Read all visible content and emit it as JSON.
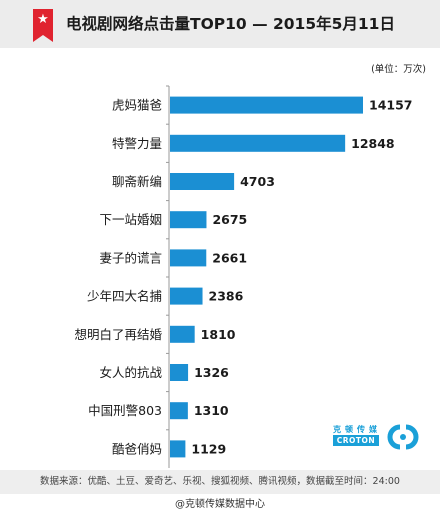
{
  "header": {
    "title": "电视剧网络点击量TOP10 — 2015年5月11日",
    "badge_icon": "star"
  },
  "colors": {
    "bar": "#1b8fd3",
    "badge": "#e0232f",
    "brand": "#1aa0d8"
  },
  "chart_data": {
    "type": "bar",
    "orientation": "horizontal",
    "title": "电视剧网络点击量TOP10 — 2015年5月11日",
    "unit": "(单位：万次)",
    "categories": [
      "虎妈猫爸",
      "特警力量",
      "聊斋新编",
      "下一站婚姻",
      "妻子的谎言",
      "少年四大名捕",
      "想明白了再结婚",
      "女人的抗战",
      "中国刑警803",
      "酷爸俏妈"
    ],
    "values": [
      14157,
      12848,
      4703,
      2675,
      2661,
      2386,
      1810,
      1326,
      1310,
      1129
    ],
    "xlim": [
      0,
      14157
    ],
    "grid": false,
    "legend": "none"
  },
  "logo": {
    "chinese": "克顿传媒",
    "english": "CROTON"
  },
  "footer": {
    "source": "数据来源：优酷、土豆、爱奇艺、乐视、搜狐视频、腾讯视频，数据截至时间：24:00",
    "weibo": "@克顿传媒数据中心"
  }
}
